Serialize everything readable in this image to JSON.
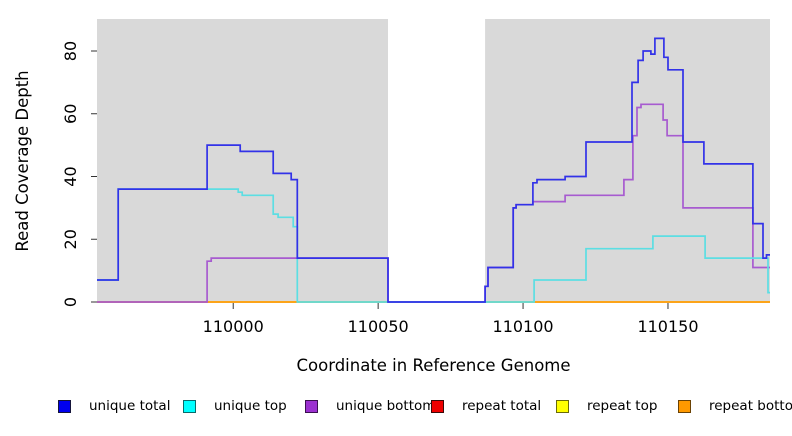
{
  "chart_data": {
    "type": "line",
    "subtype": "step",
    "title": "",
    "xlabel": "Coordinate in Reference Genome",
    "ylabel": "Read Coverage Depth",
    "xlim": [
      109953,
      110185.2
    ],
    "ylim": [
      0,
      90
    ],
    "xticks": [
      110000,
      110050,
      110100,
      110150
    ],
    "yticks": [
      0,
      20,
      40,
      60,
      80
    ],
    "grid": "off",
    "panel_bg": "#D9D9D9",
    "masked_region": {
      "x0": 110053.4,
      "x1": 110086.9,
      "color": "#FFFFFF"
    },
    "legend_position": "bottom",
    "series": [
      {
        "name": "repeat total",
        "color": "#E03030",
        "points": [
          [
            109953,
            0
          ],
          [
            110185.2,
            0
          ]
        ]
      },
      {
        "name": "repeat top",
        "color": "#F0F000",
        "points": [
          [
            109953,
            0
          ],
          [
            110185.2,
            0
          ]
        ]
      },
      {
        "name": "repeat bottom",
        "color": "#FF9E1B",
        "points": [
          [
            109953,
            0
          ],
          [
            110185.2,
            0
          ]
        ]
      },
      {
        "name": "unique bottom",
        "color": "#A75BD0",
        "points": [
          [
            109953,
            0
          ],
          [
            109991,
            13
          ],
          [
            109992.4,
            14
          ],
          [
            110053.4,
            0
          ],
          [
            110086.9,
            5
          ],
          [
            110087.9,
            11
          ],
          [
            110096.6,
            30
          ],
          [
            110097.6,
            31
          ],
          [
            110103.4,
            32
          ],
          [
            110114.5,
            34
          ],
          [
            110134.8,
            39
          ],
          [
            110137.9,
            53
          ],
          [
            110139.3,
            62
          ],
          [
            110140.7,
            63
          ],
          [
            110148.3,
            58
          ],
          [
            110149.7,
            53
          ],
          [
            110155.2,
            30
          ],
          [
            110179.3,
            11
          ],
          [
            110185.2,
            11
          ]
        ]
      },
      {
        "name": "unique top",
        "color": "#5CDEE3",
        "points": [
          [
            109953,
            7
          ],
          [
            109960.3,
            36
          ],
          [
            110001.7,
            35
          ],
          [
            110003.1,
            34
          ],
          [
            110013.8,
            28
          ],
          [
            110015.5,
            27
          ],
          [
            110020.7,
            24
          ],
          [
            110022.1,
            0
          ],
          [
            110103.8,
            7
          ],
          [
            110121.7,
            17
          ],
          [
            110144.8,
            21
          ],
          [
            110162.8,
            14
          ],
          [
            110184.5,
            3
          ],
          [
            110185.2,
            3
          ]
        ]
      },
      {
        "name": "unique total",
        "color": "#3232E8",
        "points": [
          [
            109953,
            7
          ],
          [
            109960.3,
            36
          ],
          [
            109991,
            50
          ],
          [
            110002.4,
            48
          ],
          [
            110013.8,
            41
          ],
          [
            110020,
            39
          ],
          [
            110022.1,
            14
          ],
          [
            110053.4,
            0
          ],
          [
            110086.9,
            5
          ],
          [
            110087.9,
            11
          ],
          [
            110096.6,
            30
          ],
          [
            110097.6,
            31
          ],
          [
            110103.4,
            38
          ],
          [
            110104.8,
            39
          ],
          [
            110114.5,
            40
          ],
          [
            110121.7,
            51
          ],
          [
            110137.6,
            70
          ],
          [
            110139.7,
            77
          ],
          [
            110141.4,
            80
          ],
          [
            110144.1,
            79
          ],
          [
            110145.5,
            84
          ],
          [
            110148.6,
            78
          ],
          [
            110150,
            74
          ],
          [
            110155.2,
            51
          ],
          [
            110162.4,
            44
          ],
          [
            110179.3,
            25
          ],
          [
            110182.8,
            14
          ],
          [
            110184,
            15
          ],
          [
            110185.2,
            15
          ]
        ]
      }
    ],
    "legend": [
      {
        "label": "unique total",
        "fill": "#0000EE",
        "border": "#15153a"
      },
      {
        "label": "unique top",
        "fill": "#00FFFF",
        "border": "#0a6a6a"
      },
      {
        "label": "unique bottom",
        "fill": "#9B30D0",
        "border": "#3a1050"
      },
      {
        "label": "repeat total",
        "fill": "#EE0000",
        "border": "#3a0a0a"
      },
      {
        "label": "repeat top",
        "fill": "#FFFF00",
        "border": "#6a6a0a"
      },
      {
        "label": "repeat bottom",
        "fill": "#FF9900",
        "border": "#6a4205"
      }
    ]
  }
}
